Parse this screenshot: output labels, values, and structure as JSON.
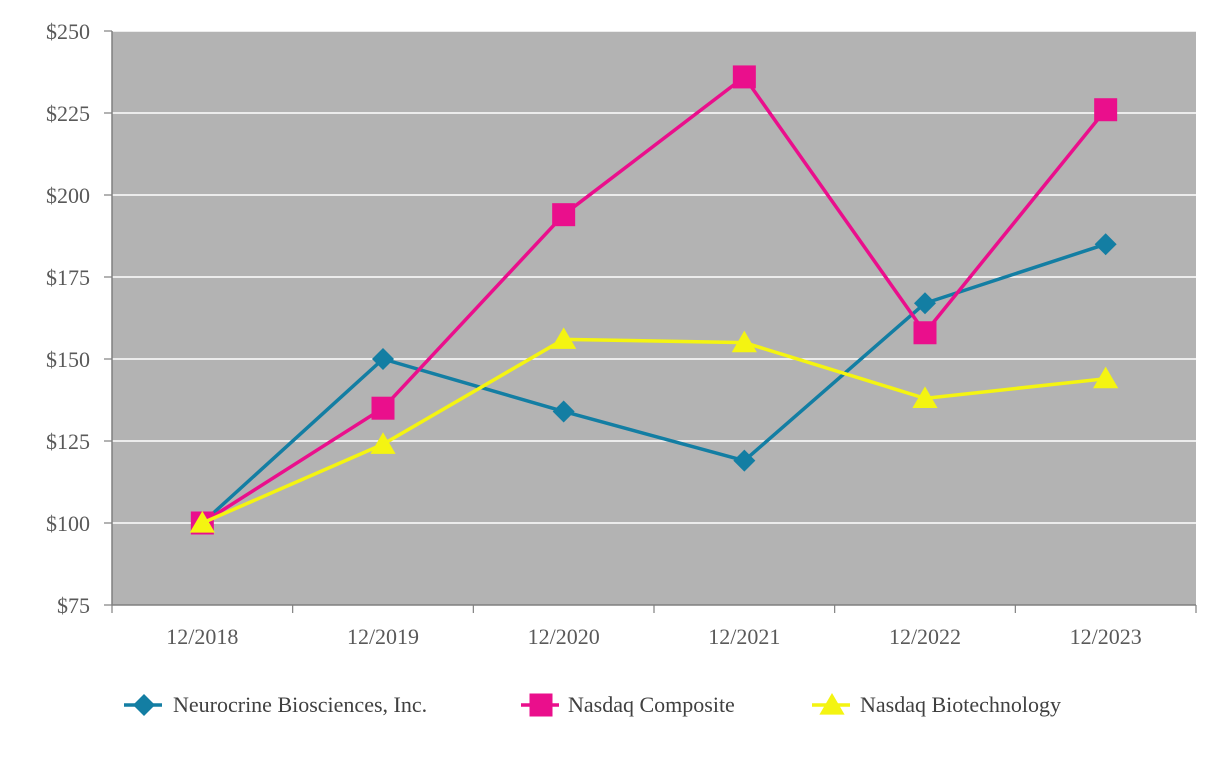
{
  "chart_data": {
    "type": "line",
    "title": "",
    "xlabel": "",
    "ylabel": "",
    "categories": [
      "12/2018",
      "12/2019",
      "12/2020",
      "12/2021",
      "12/2022",
      "12/2023"
    ],
    "ylim": [
      75,
      250
    ],
    "yticks": [
      75,
      100,
      125,
      150,
      175,
      200,
      225,
      250
    ],
    "ytick_labels": [
      "$75",
      "$100",
      "$125",
      "$150",
      "$175",
      "$200",
      "$225",
      "$250"
    ],
    "grid": true,
    "legend_position": "bottom",
    "plot_background": "#b3b3b3",
    "series": [
      {
        "name": "Neurocrine Biosciences, Inc.",
        "color": "#137ea3",
        "marker": "diamond",
        "values": [
          100,
          150,
          134,
          119,
          167,
          185
        ]
      },
      {
        "name": "Nasdaq Composite",
        "color": "#ea0f8c",
        "marker": "square",
        "values": [
          100,
          135,
          194,
          236,
          158,
          226
        ]
      },
      {
        "name": "Nasdaq Biotechnology",
        "color": "#f4f411",
        "marker": "triangle",
        "values": [
          100,
          124,
          156,
          155,
          138,
          144
        ]
      }
    ]
  }
}
